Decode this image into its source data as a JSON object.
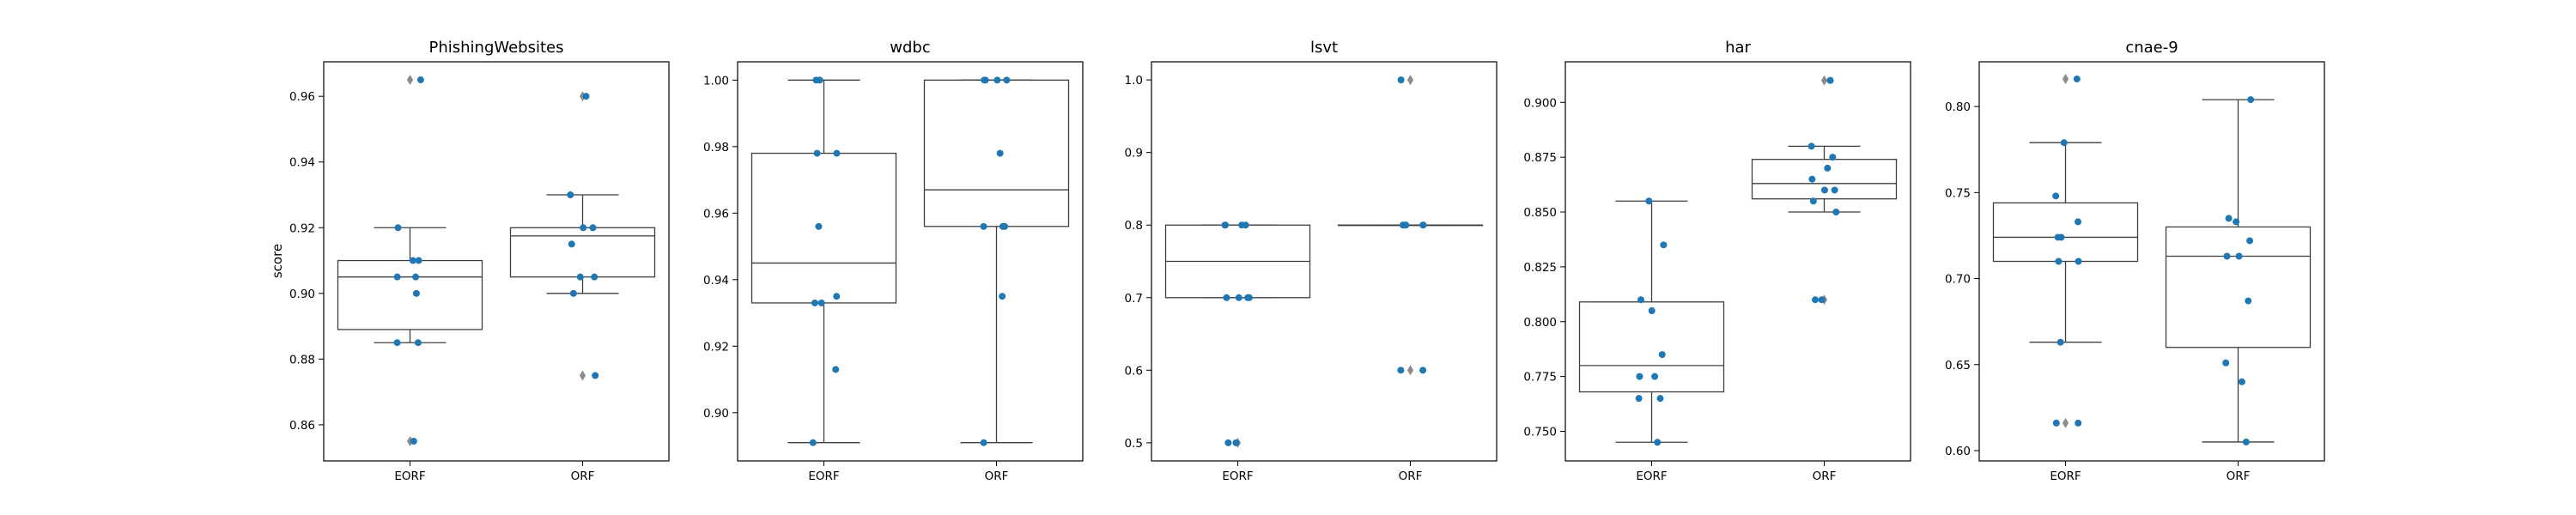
{
  "figure": {
    "ylabel": "score"
  },
  "chart_data": [
    {
      "type": "box",
      "title": "PhishingWebsites",
      "categories": [
        "EORF",
        "ORF"
      ],
      "ylim": [
        0.849,
        0.9705
      ],
      "yticks": [
        "0.86",
        "0.88",
        "0.90",
        "0.92",
        "0.94",
        "0.96"
      ],
      "boxes": [
        {
          "q1": 0.889,
          "median": 0.905,
          "q3": 0.91,
          "whisker_low": 0.885,
          "whisker_high": 0.92,
          "fliers": [
            0.965,
            0.855
          ]
        },
        {
          "q1": 0.905,
          "median": 0.9175,
          "q3": 0.92,
          "whisker_low": 0.9,
          "whisker_high": 0.93,
          "fliers": [
            0.96,
            0.875
          ]
        }
      ],
      "points": [
        [
          0.965,
          0.92,
          0.91,
          0.91,
          0.905,
          0.905,
          0.9,
          0.885,
          0.885,
          0.855
        ],
        [
          0.96,
          0.93,
          0.92,
          0.92,
          0.915,
          0.905,
          0.905,
          0.9,
          0.875
        ]
      ]
    },
    {
      "type": "box",
      "title": "wdbc",
      "categories": [
        "EORF",
        "ORF"
      ],
      "ylim": [
        0.8855,
        1.0055
      ],
      "yticks": [
        "0.90",
        "0.92",
        "0.94",
        "0.96",
        "0.98",
        "1.00"
      ],
      "boxes": [
        {
          "q1": 0.933,
          "median": 0.945,
          "q3": 0.978,
          "whisker_low": 0.891,
          "whisker_high": 1.0,
          "fliers": []
        },
        {
          "q1": 0.956,
          "median": 0.967,
          "q3": 1.0,
          "whisker_low": 0.891,
          "whisker_high": 1.0,
          "fliers": []
        }
      ],
      "points": [
        [
          1.0,
          1.0,
          0.978,
          0.978,
          0.956,
          0.935,
          0.933,
          0.933,
          0.913,
          0.891
        ],
        [
          1.0,
          1.0,
          1.0,
          1.0,
          0.978,
          0.956,
          0.956,
          0.956,
          0.935,
          0.891
        ]
      ]
    },
    {
      "type": "box",
      "title": "lsvt",
      "categories": [
        "EORF",
        "ORF"
      ],
      "ylim": [
        0.475,
        1.025
      ],
      "yticks": [
        "0.5",
        "0.6",
        "0.7",
        "0.8",
        "0.9",
        "1.0"
      ],
      "boxes": [
        {
          "q1": 0.7,
          "median": 0.75,
          "q3": 0.8,
          "whisker_low": 0.7,
          "whisker_high": 0.8,
          "fliers": [
            0.5
          ]
        },
        {
          "q1": 0.8,
          "median": 0.8,
          "q3": 0.8,
          "whisker_low": 0.8,
          "whisker_high": 0.8,
          "fliers": [
            1.0,
            0.6
          ]
        }
      ],
      "points": [
        [
          0.8,
          0.8,
          0.8,
          0.8,
          0.7,
          0.7,
          0.7,
          0.7,
          0.5,
          0.5
        ],
        [
          1.0,
          0.8,
          0.8,
          0.8,
          0.8,
          0.8,
          0.8,
          0.6,
          0.6
        ]
      ]
    },
    {
      "type": "box",
      "title": "har",
      "categories": [
        "EORF",
        "ORF"
      ],
      "ylim": [
        0.7365,
        0.9185
      ],
      "yticks": [
        "0.750",
        "0.775",
        "0.800",
        "0.825",
        "0.850",
        "0.875",
        "0.900"
      ],
      "boxes": [
        {
          "q1": 0.768,
          "median": 0.78,
          "q3": 0.809,
          "whisker_low": 0.745,
          "whisker_high": 0.855,
          "fliers": []
        },
        {
          "q1": 0.856,
          "median": 0.863,
          "q3": 0.874,
          "whisker_low": 0.85,
          "whisker_high": 0.88,
          "fliers": [
            0.91,
            0.81
          ]
        }
      ],
      "points": [
        [
          0.855,
          0.835,
          0.81,
          0.805,
          0.785,
          0.775,
          0.775,
          0.765,
          0.765,
          0.745
        ],
        [
          0.91,
          0.91,
          0.88,
          0.875,
          0.87,
          0.865,
          0.86,
          0.86,
          0.855,
          0.85,
          0.81,
          0.81
        ]
      ]
    },
    {
      "type": "box",
      "title": "cnae-9",
      "categories": [
        "EORF",
        "ORF"
      ],
      "ylim": [
        0.594,
        0.826
      ],
      "yticks": [
        "0.60",
        "0.65",
        "0.70",
        "0.75",
        "0.80"
      ],
      "boxes": [
        {
          "q1": 0.71,
          "median": 0.724,
          "q3": 0.744,
          "whisker_low": 0.663,
          "whisker_high": 0.779,
          "fliers": [
            0.816,
            0.616
          ]
        },
        {
          "q1": 0.66,
          "median": 0.713,
          "q3": 0.73,
          "whisker_low": 0.605,
          "whisker_high": 0.804,
          "fliers": []
        }
      ],
      "points": [
        [
          0.816,
          0.779,
          0.748,
          0.733,
          0.724,
          0.724,
          0.71,
          0.71,
          0.663,
          0.616,
          0.616
        ],
        [
          0.804,
          0.735,
          0.733,
          0.722,
          0.713,
          0.713,
          0.687,
          0.651,
          0.64,
          0.605
        ]
      ]
    }
  ],
  "colors": {
    "point": "#1f77b4",
    "box_line": "#3f3f3f",
    "flier": "#8c8c8c",
    "axis": "#000000"
  }
}
